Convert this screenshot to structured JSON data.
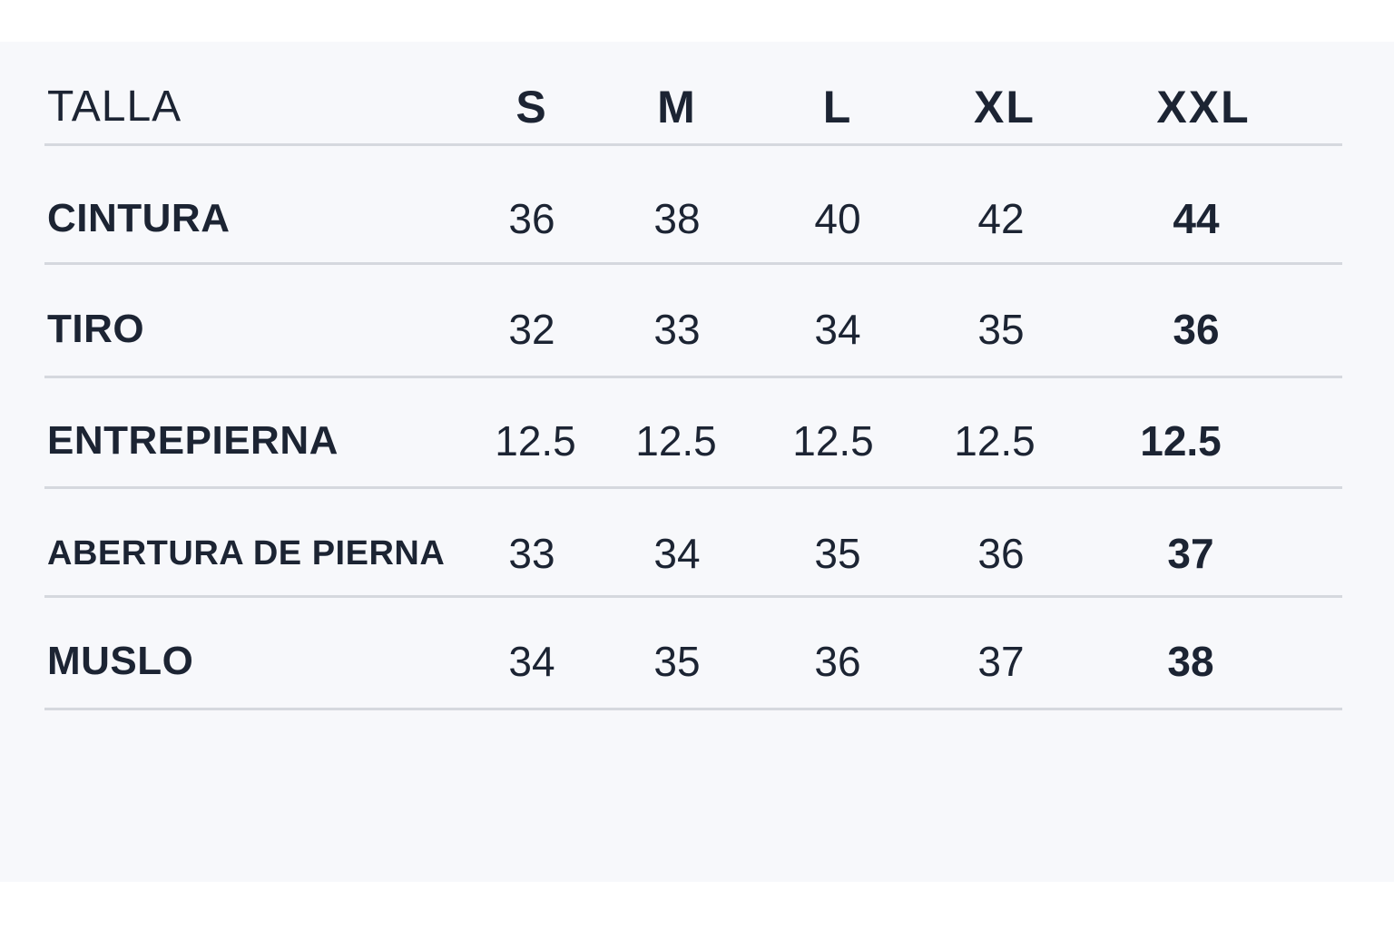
{
  "table": {
    "header": {
      "label": "TALLA",
      "sizes": [
        "S",
        "M",
        "L",
        "XL",
        "XXL"
      ]
    },
    "rows": [
      {
        "label": "CINTURA",
        "values": [
          "36",
          "38",
          "40",
          "42",
          "44"
        ]
      },
      {
        "label": "TIRO",
        "values": [
          "32",
          "33",
          "34",
          "35",
          "36"
        ]
      },
      {
        "label": "ENTREPIERNA",
        "values": [
          "12.5",
          "12.5",
          "12.5",
          "12.5",
          "12.5"
        ]
      },
      {
        "label": "ABERTURA DE PIERNA",
        "values": [
          "33",
          "34",
          "35",
          "36",
          "37"
        ]
      },
      {
        "label": "MUSLO",
        "values": [
          "34",
          "35",
          "36",
          "37",
          "38"
        ]
      }
    ]
  }
}
